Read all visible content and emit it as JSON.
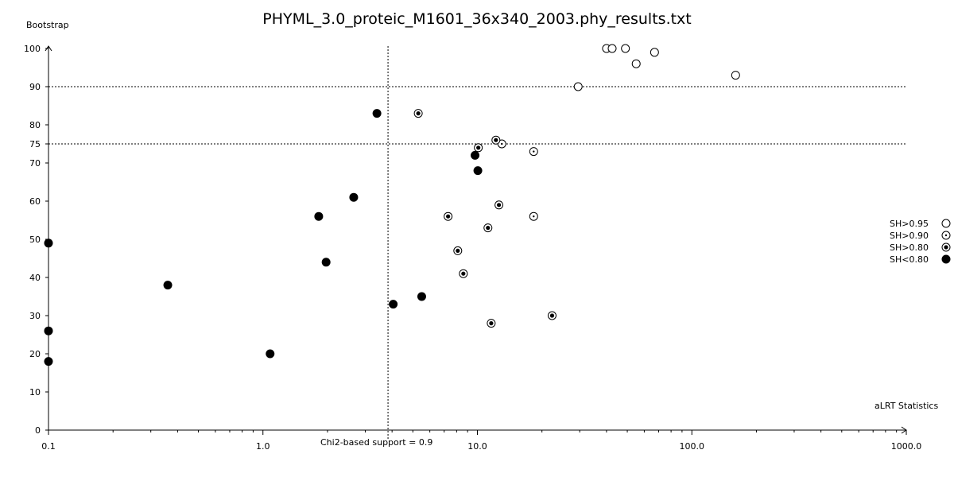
{
  "chart_data": {
    "type": "scatter",
    "title": "PHYML_3.0_proteic_M1601_36x340_2003.phy_results.txt",
    "ylabel": "Bootstrap",
    "xlabel": "aLRT Statistics",
    "x_scale": "log",
    "xlim": [
      0.1,
      1000.0
    ],
    "ylim": [
      0,
      100
    ],
    "x_ticks": [
      "0.1",
      "1.0",
      "10.0",
      "100.0",
      "1000.0"
    ],
    "y_ticks": [
      "0",
      "10",
      "20",
      "30",
      "40",
      "50",
      "60",
      "70",
      "75",
      "80",
      "90",
      "100"
    ],
    "reference_lines": {
      "horizontal": [
        90,
        75
      ],
      "vertical": {
        "x": 3.83,
        "label": "Chi2-based support = 0.9"
      }
    },
    "legend": {
      "placement": "right",
      "entries": [
        {
          "label": "SH>0.95",
          "marker": "open"
        },
        {
          "label": "SH>0.90",
          "marker": "dotted"
        },
        {
          "label": "SH>0.80",
          "marker": "ringed"
        },
        {
          "label": "SH<0.80",
          "marker": "filled"
        }
      ]
    },
    "series": [
      {
        "name": "SH>0.95",
        "marker": "open",
        "points": [
          {
            "x": 40.0,
            "y": 100
          },
          {
            "x": 42.5,
            "y": 100
          },
          {
            "x": 49.0,
            "y": 100
          },
          {
            "x": 67.0,
            "y": 99
          },
          {
            "x": 55.0,
            "y": 96
          },
          {
            "x": 29.5,
            "y": 90
          },
          {
            "x": 160.0,
            "y": 93
          }
        ]
      },
      {
        "name": "SH>0.90",
        "marker": "dotted",
        "points": [
          {
            "x": 13.0,
            "y": 75
          },
          {
            "x": 18.3,
            "y": 73
          },
          {
            "x": 18.3,
            "y": 56
          }
        ]
      },
      {
        "name": "SH>0.80",
        "marker": "ringed",
        "points": [
          {
            "x": 5.3,
            "y": 83
          },
          {
            "x": 12.2,
            "y": 76
          },
          {
            "x": 10.1,
            "y": 74
          },
          {
            "x": 12.6,
            "y": 59
          },
          {
            "x": 7.3,
            "y": 56
          },
          {
            "x": 11.2,
            "y": 53
          },
          {
            "x": 8.1,
            "y": 47
          },
          {
            "x": 8.6,
            "y": 41
          },
          {
            "x": 22.3,
            "y": 30
          },
          {
            "x": 11.6,
            "y": 28
          }
        ]
      },
      {
        "name": "SH<0.80",
        "marker": "filled",
        "points": [
          {
            "x": 3.4,
            "y": 83
          },
          {
            "x": 9.75,
            "y": 72
          },
          {
            "x": 10.05,
            "y": 68
          },
          {
            "x": 2.65,
            "y": 61
          },
          {
            "x": 1.82,
            "y": 56
          },
          {
            "x": 0.1,
            "y": 49
          },
          {
            "x": 1.97,
            "y": 44
          },
          {
            "x": 0.36,
            "y": 38
          },
          {
            "x": 5.5,
            "y": 35
          },
          {
            "x": 4.05,
            "y": 33
          },
          {
            "x": 0.1,
            "y": 26
          },
          {
            "x": 1.08,
            "y": 20
          },
          {
            "x": 0.1,
            "y": 18
          }
        ]
      }
    ]
  }
}
